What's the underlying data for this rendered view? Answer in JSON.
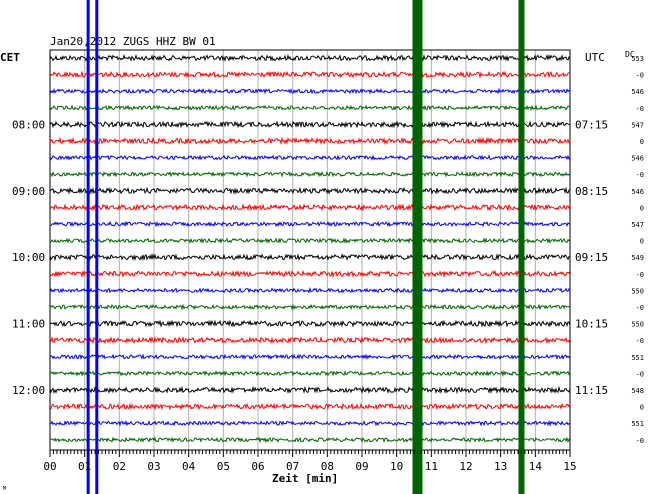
{
  "chart_data": {
    "type": "line",
    "title": "Jan20,2012   ZUGS HHZ BW 01",
    "left_timezone": "CET",
    "right_timezone": "UTC",
    "dc_label": "DC",
    "xlabel": "Zeit [min]",
    "xlim": [
      0,
      15
    ],
    "x_ticks": [
      "00",
      "01",
      "02",
      "03",
      "04",
      "05",
      "06",
      "07",
      "08",
      "09",
      "10",
      "11",
      "12",
      "13",
      "14",
      "15"
    ],
    "trace_count": 24,
    "trace_colors": [
      "#000000",
      "#ff0000",
      "#0000ff",
      "#006400"
    ],
    "left_time_labels": [
      {
        "trace": 4,
        "text": "08:00"
      },
      {
        "trace": 8,
        "text": "09:00"
      },
      {
        "trace": 12,
        "text": "10:00"
      },
      {
        "trace": 16,
        "text": "11:00"
      },
      {
        "trace": 20,
        "text": "12:00"
      }
    ],
    "right_time_labels": [
      {
        "trace": 4,
        "text": "07:15"
      },
      {
        "trace": 8,
        "text": "08:15"
      },
      {
        "trace": 12,
        "text": "09:15"
      },
      {
        "trace": 16,
        "text": "10:15"
      },
      {
        "trace": 20,
        "text": "11:15"
      }
    ],
    "dc_values": [
      "553",
      "-0",
      "546",
      "-0",
      "547",
      "0",
      "546",
      "-0",
      "546",
      "0",
      "547",
      "0",
      "549",
      "-0",
      "550",
      "-0",
      "550",
      "-0",
      "551",
      "-0",
      "548",
      "0",
      "551",
      "-0"
    ],
    "events": [
      {
        "x_min": 1.1,
        "color": "#0000ff",
        "label": "blue spike A"
      },
      {
        "x_min": 1.35,
        "color": "#0000ff",
        "label": "blue spike B"
      },
      {
        "x_min": 10.6,
        "color": "#006400",
        "label": "green event A"
      },
      {
        "x_min": 13.6,
        "color": "#006400",
        "label": "green event B"
      }
    ],
    "grid": true
  },
  "footer_mark": "M"
}
